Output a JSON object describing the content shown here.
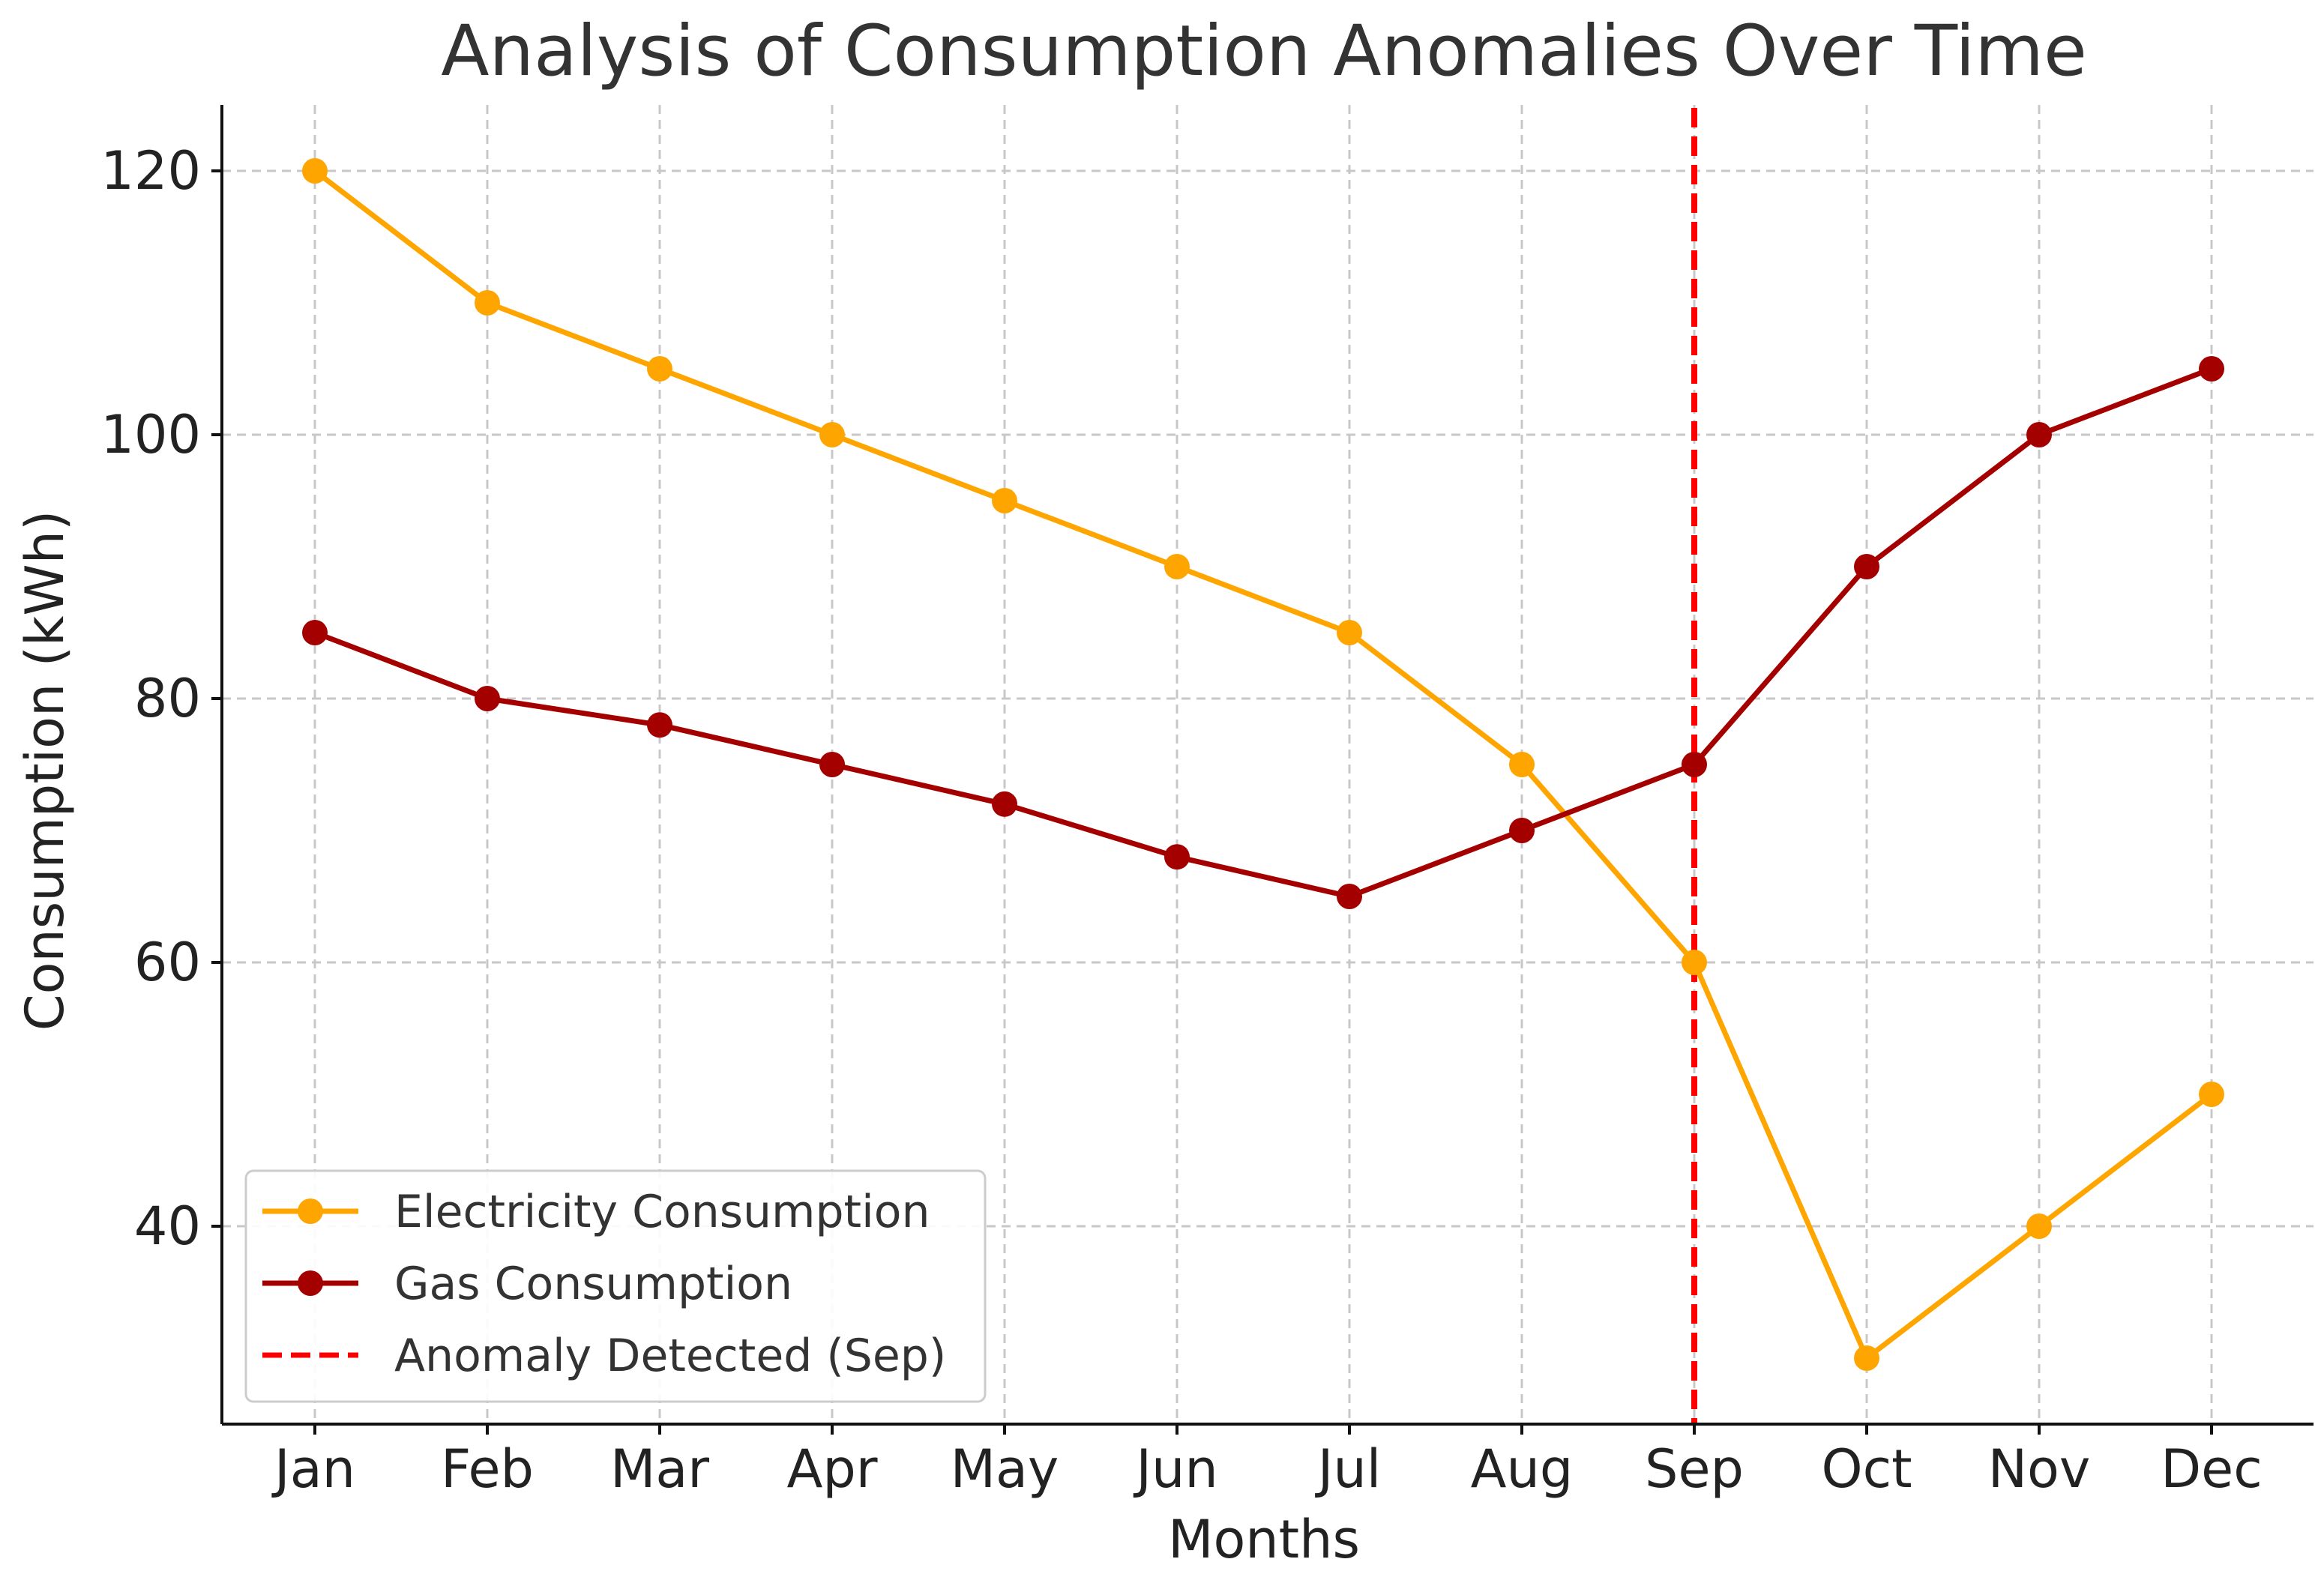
{
  "chart_data": {
    "type": "line",
    "title": "Analysis of Consumption Anomalies Over Time",
    "xlabel": "Months",
    "ylabel": "Consumption (kWh)",
    "categories": [
      "Jan",
      "Feb",
      "Mar",
      "Apr",
      "May",
      "Jun",
      "Jul",
      "Aug",
      "Sep",
      "Oct",
      "Nov",
      "Dec"
    ],
    "ylim": [
      25,
      125
    ],
    "yticks": [
      40,
      60,
      80,
      100,
      120
    ],
    "grid": true,
    "legend_position": "lower-left",
    "series": [
      {
        "name": "Electricity Consumption",
        "color": "#FFA500",
        "marker": "circle",
        "values": [
          120,
          110,
          105,
          100,
          95,
          90,
          85,
          75,
          60,
          30,
          40,
          50
        ]
      },
      {
        "name": "Gas Consumption",
        "color": "#A50000",
        "marker": "circle",
        "values": [
          85,
          80,
          78,
          75,
          72,
          68,
          65,
          70,
          75,
          90,
          100,
          105
        ]
      }
    ],
    "annotations": [
      {
        "type": "vline",
        "at": "Sep",
        "label": "Anomaly Detected (Sep)",
        "color": "#FF0000",
        "style": "dashed"
      }
    ]
  }
}
